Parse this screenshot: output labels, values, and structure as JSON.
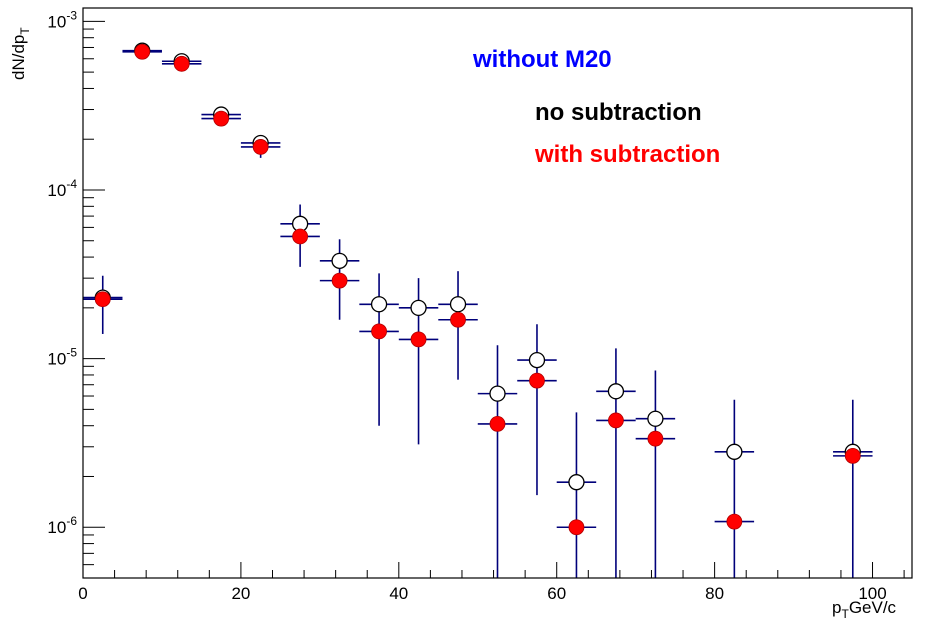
{
  "chart_data": {
    "type": "scatter",
    "title": "",
    "ylabel": {
      "main": "dN/dp",
      "sub": "T"
    },
    "xlabel": {
      "main": "p",
      "sub": "T",
      "rest": "GeV/c"
    },
    "xlim": [
      0,
      105
    ],
    "ylim": [
      5e-07,
      0.0012
    ],
    "ylog": true,
    "grid": false,
    "x_ticks": [
      0,
      20,
      40,
      60,
      80,
      100
    ],
    "x_tick_labels": [
      "0",
      "20",
      "40",
      "60",
      "80",
      "100"
    ],
    "y_ticks": [
      1e-06,
      1e-05,
      0.0001,
      0.001
    ],
    "y_tick_labels": [
      {
        "base": "10",
        "exp": "-6"
      },
      {
        "base": "10",
        "exp": "-5"
      },
      {
        "base": "10",
        "exp": "-4"
      },
      {
        "base": "10",
        "exp": "-3"
      }
    ],
    "annotations": [
      {
        "text": "without M20",
        "color": "#0000ff"
      },
      {
        "text": "no subtraction",
        "color": "#000000"
      },
      {
        "text": "with subtraction",
        "color": "#ff0000"
      }
    ],
    "series": [
      {
        "marker": "open-circle",
        "color": "#000000",
        "points": [
          {
            "x": 2.5,
            "y": 2.3e-05,
            "xerr": 2.5,
            "ylo": 1.4e-05,
            "yhi": 3.1e-05
          },
          {
            "x": 7.5,
            "y": 0.00067,
            "xerr": 2.5,
            "ylo": 0.00064,
            "yhi": 0.0007
          },
          {
            "x": 12.5,
            "y": 0.00058,
            "xerr": 2.5,
            "ylo": 0.00055,
            "yhi": 0.00062
          },
          {
            "x": 17.5,
            "y": 0.00028,
            "xerr": 2.5,
            "ylo": 0.00025,
            "yhi": 0.0003
          },
          {
            "x": 22.5,
            "y": 0.00019,
            "xerr": 2.5,
            "ylo": 0.000155,
            "yhi": 0.000205
          },
          {
            "x": 27.5,
            "y": 6.3e-05,
            "xerr": 2.5,
            "ylo": 3.5e-05,
            "yhi": 8.2e-05
          },
          {
            "x": 32.5,
            "y": 3.8e-05,
            "xerr": 2.5,
            "ylo": 1.7e-05,
            "yhi": 5.1e-05
          },
          {
            "x": 37.5,
            "y": 2.1e-05,
            "xerr": 2.5,
            "ylo": 4e-06,
            "yhi": 3.2e-05
          },
          {
            "x": 42.5,
            "y": 2e-05,
            "xerr": 2.5,
            "ylo": 3.1e-06,
            "yhi": 3e-05
          },
          {
            "x": 47.5,
            "y": 2.1e-05,
            "xerr": 2.5,
            "ylo": 7.5e-06,
            "yhi": 3.3e-05
          },
          {
            "x": 52.5,
            "y": 6.2e-06,
            "xerr": 2.5,
            "ylo": 5e-07,
            "yhi": 1.2e-05
          },
          {
            "x": 57.5,
            "y": 9.8e-06,
            "xerr": 2.5,
            "ylo": 1.55e-06,
            "yhi": 1.6e-05
          },
          {
            "x": 62.5,
            "y": 1.85e-06,
            "xerr": 2.5,
            "ylo": 5e-07,
            "yhi": 4.8e-06
          },
          {
            "x": 67.5,
            "y": 6.4e-06,
            "xerr": 2.5,
            "ylo": 5e-07,
            "yhi": 1.15e-05
          },
          {
            "x": 72.5,
            "y": 4.4e-06,
            "xerr": 2.5,
            "ylo": 5e-07,
            "yhi": 8.5e-06
          },
          {
            "x": 82.5,
            "y": 2.8e-06,
            "xerr": 2.5,
            "ylo": 5e-07,
            "yhi": 5.7e-06
          },
          {
            "x": 97.5,
            "y": 2.8e-06,
            "xerr": 2.5,
            "ylo": 5e-07,
            "yhi": 5.7e-06
          }
        ]
      },
      {
        "marker": "filled-circle",
        "color": "#ff0000",
        "points": [
          {
            "x": 2.5,
            "y": 2.25e-05,
            "xerr": 2.5
          },
          {
            "x": 7.5,
            "y": 0.00066,
            "xerr": 2.5
          },
          {
            "x": 12.5,
            "y": 0.00056,
            "xerr": 2.5
          },
          {
            "x": 17.5,
            "y": 0.000265,
            "xerr": 2.5
          },
          {
            "x": 22.5,
            "y": 0.00018,
            "xerr": 2.5
          },
          {
            "x": 27.5,
            "y": 5.3e-05,
            "xerr": 2.5
          },
          {
            "x": 32.5,
            "y": 2.9e-05,
            "xerr": 2.5
          },
          {
            "x": 37.5,
            "y": 1.45e-05,
            "xerr": 2.5
          },
          {
            "x": 42.5,
            "y": 1.3e-05,
            "xerr": 2.5
          },
          {
            "x": 47.5,
            "y": 1.7e-05,
            "xerr": 2.5
          },
          {
            "x": 52.5,
            "y": 4.1e-06,
            "xerr": 2.5
          },
          {
            "x": 57.5,
            "y": 7.4e-06,
            "xerr": 2.5
          },
          {
            "x": 62.5,
            "y": 1e-06,
            "xerr": 2.5
          },
          {
            "x": 67.5,
            "y": 4.3e-06,
            "xerr": 2.5
          },
          {
            "x": 72.5,
            "y": 3.35e-06,
            "xerr": 2.5
          },
          {
            "x": 82.5,
            "y": 1.08e-06,
            "xerr": 2.5
          },
          {
            "x": 97.5,
            "y": 2.65e-06,
            "xerr": 2.5
          }
        ]
      }
    ]
  }
}
